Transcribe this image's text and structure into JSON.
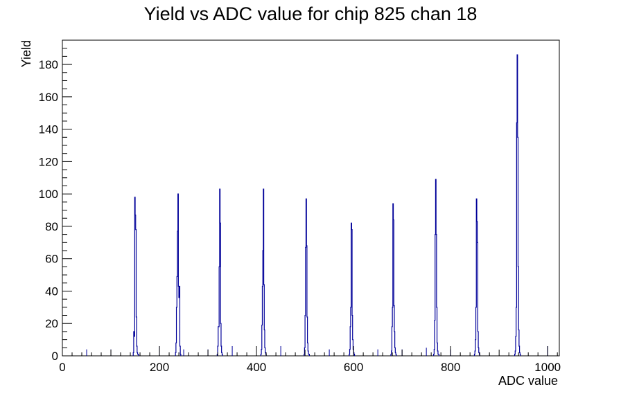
{
  "chart_data": {
    "type": "bar",
    "title": "Yield vs ADC value for chip 825 chan 18",
    "xlabel": "ADC value",
    "ylabel": "Yield",
    "xlim": [
      0,
      1024
    ],
    "ylim": [
      0,
      195
    ],
    "x_ticks": [
      0,
      200,
      400,
      600,
      800,
      1000
    ],
    "y_ticks": [
      0,
      20,
      40,
      60,
      80,
      100,
      120,
      140,
      160,
      180
    ],
    "bin_width": 1,
    "line_color": "#000099",
    "grid": false,
    "legend": "none",
    "series": [
      {
        "x": [
          146,
          147,
          148,
          149,
          150,
          151,
          152,
          153,
          154,
          155,
          156,
          233,
          234,
          235,
          236,
          237,
          238,
          239,
          240,
          241,
          242,
          243,
          319,
          320,
          321,
          322,
          323,
          324,
          325,
          326,
          327,
          328,
          329,
          409,
          410,
          411,
          412,
          413,
          414,
          415,
          416,
          417,
          418,
          419,
          498,
          499,
          500,
          501,
          502,
          503,
          504,
          505,
          506,
          507,
          508,
          591,
          592,
          593,
          594,
          595,
          596,
          597,
          598,
          599,
          600,
          601,
          677,
          678,
          679,
          680,
          681,
          682,
          683,
          684,
          685,
          686,
          687,
          765,
          766,
          767,
          768,
          769,
          770,
          771,
          772,
          773,
          774,
          775,
          849,
          850,
          851,
          852,
          853,
          854,
          855,
          856,
          857,
          858,
          859,
          932,
          933,
          934,
          935,
          936,
          937,
          938,
          939,
          940,
          941,
          942,
          943
        ],
        "values": [
          2,
          15,
          12,
          98,
          87,
          78,
          24,
          6,
          2,
          1,
          1,
          2,
          8,
          30,
          49,
          77,
          100,
          43,
          36,
          43,
          6,
          1,
          1,
          6,
          18,
          18,
          55,
          103,
          82,
          20,
          6,
          2,
          1,
          1,
          4,
          19,
          43,
          65,
          103,
          44,
          16,
          5,
          2,
          1,
          1,
          5,
          25,
          67,
          97,
          68,
          24,
          8,
          3,
          1,
          1,
          1,
          4,
          18,
          30,
          82,
          78,
          25,
          10,
          4,
          2,
          1,
          1,
          3,
          18,
          30,
          94,
          84,
          31,
          15,
          5,
          2,
          1,
          1,
          4,
          22,
          75,
          109,
          75,
          30,
          8,
          3,
          1,
          1,
          1,
          3,
          10,
          30,
          97,
          83,
          70,
          15,
          5,
          2,
          1,
          1,
          3,
          12,
          30,
          144,
          186,
          135,
          55,
          16,
          6,
          2,
          1
        ]
      }
    ],
    "isolated_bins": {
      "x": [
        50,
        100,
        200,
        250,
        300,
        350,
        450,
        550,
        650,
        700,
        750,
        800,
        1000
      ],
      "values": [
        4,
        4,
        6,
        4,
        4,
        6,
        6,
        4,
        4,
        4,
        5,
        4,
        6
      ]
    }
  }
}
